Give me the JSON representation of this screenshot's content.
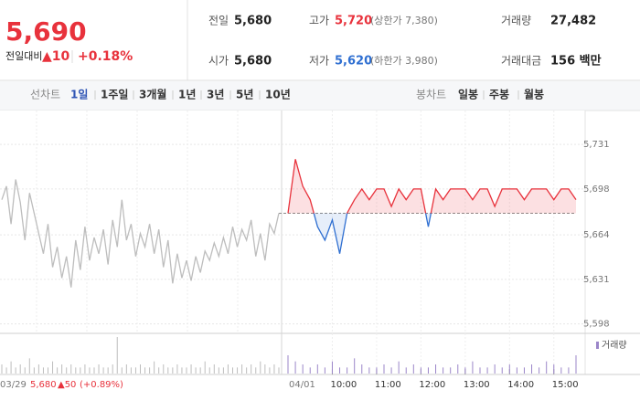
{
  "header": {
    "price": "5,690",
    "change_label": "전일대비",
    "change": "▲10",
    "rate": "+0.18%",
    "stats": [
      [
        {
          "label": "전일",
          "value": "5,680"
        },
        {
          "label": "고가",
          "value": "5,720",
          "note": "(상한가 7,380)"
        },
        {
          "label": "거래량",
          "value": "27,482"
        }
      ],
      [
        {
          "label": "시가",
          "value": "5,680"
        },
        {
          "label": "저가",
          "value": "5,620",
          "note": "(하한가 3,980)"
        },
        {
          "label": "거래대금",
          "value": "156 백만"
        }
      ]
    ]
  },
  "tabs": {
    "line_label": "선차트",
    "line_tabs": [
      "1일",
      "1주일",
      "3개월",
      "1년",
      "3년",
      "5년",
      "10년"
    ],
    "candle_label": "봉차트",
    "candle_tabs": [
      "일봉",
      "주봉",
      "월봉"
    ]
  },
  "footer": {
    "prev_close": "5,680",
    "prev_change": "▲50",
    "prev_rate": "(+0.89%)"
  },
  "chart_data": {
    "type": "line",
    "base": 5680,
    "up_color": "#e8323c",
    "down_color": "#2f6fd1",
    "prev_color": "#bdbdbd",
    "ylim": [
      5593,
      5750
    ],
    "yticks": [
      {
        "value": 5731,
        "label": "5,731"
      },
      {
        "value": 5698,
        "label": "5,698"
      },
      {
        "value": 5664,
        "label": "5,664"
      },
      {
        "value": 5631,
        "label": "5,631"
      },
      {
        "value": 5598,
        "label": "5,598"
      }
    ],
    "xlim": [
      0,
      390
    ],
    "xticks": [
      {
        "value": 60,
        "label": "10:00"
      },
      {
        "value": 120,
        "label": "11:00"
      },
      {
        "value": 180,
        "label": "12:00"
      },
      {
        "value": 240,
        "label": "13:00"
      },
      {
        "value": 300,
        "label": "14:00"
      },
      {
        "value": 360,
        "label": "15:00"
      }
    ],
    "volume_label": "거래량",
    "volume_color": "#9b86c9",
    "series": [
      {
        "name": "03/29",
        "values": [
          5690,
          5700,
          5672,
          5705,
          5688,
          5660,
          5695,
          5680,
          5665,
          5650,
          5672,
          5640,
          5655,
          5632,
          5648,
          5625,
          5660,
          5638,
          5670,
          5645,
          5662,
          5650,
          5668,
          5642,
          5675,
          5655,
          5690,
          5660,
          5672,
          5648,
          5665,
          5655,
          5672,
          5650,
          5668,
          5640,
          5660,
          5628,
          5650,
          5632,
          5645,
          5630,
          5648,
          5636,
          5652,
          5645,
          5658,
          5648,
          5662,
          5650,
          5670,
          5655,
          5668,
          5660,
          5675,
          5648,
          5665,
          5645,
          5672,
          5665,
          5680
        ],
        "volumes": [
          3,
          2,
          4,
          2,
          3,
          2,
          5,
          2,
          3,
          2,
          2,
          4,
          2,
          3,
          2,
          3,
          2,
          2,
          3,
          2,
          2,
          3,
          2,
          2,
          3,
          12,
          2,
          3,
          2,
          2,
          3,
          2,
          2,
          4,
          2,
          3,
          2,
          2,
          3,
          2,
          2,
          3,
          2,
          2,
          4,
          2,
          3,
          2,
          2,
          3,
          2,
          2,
          3,
          2,
          3,
          2,
          4,
          3,
          2,
          3,
          2
        ]
      },
      {
        "name": "04/01",
        "x": [
          0,
          10,
          20,
          30,
          40,
          50,
          60,
          70,
          80,
          90,
          100,
          110,
          120,
          130,
          140,
          150,
          160,
          170,
          180,
          190,
          200,
          210,
          220,
          230,
          240,
          250,
          260,
          270,
          280,
          290,
          300,
          310,
          320,
          330,
          340,
          350,
          360,
          370,
          380,
          390
        ],
        "values": [
          5680,
          5720,
          5700,
          5690,
          5670,
          5660,
          5675,
          5650,
          5680,
          5690,
          5698,
          5690,
          5698,
          5698,
          5685,
          5698,
          5690,
          5698,
          5698,
          5670,
          5698,
          5690,
          5698,
          5698,
          5698,
          5690,
          5698,
          5698,
          5685,
          5698,
          5698,
          5698,
          5690,
          5698,
          5698,
          5698,
          5690,
          5698,
          5698,
          5690
        ],
        "volumes": [
          6,
          4,
          3,
          2,
          3,
          2,
          4,
          2,
          2,
          5,
          3,
          2,
          2,
          3,
          2,
          4,
          2,
          3,
          2,
          2,
          3,
          2,
          2,
          3,
          2,
          4,
          2,
          2,
          3,
          2,
          3,
          2,
          2,
          3,
          2,
          4,
          3,
          2,
          2,
          6
        ]
      }
    ]
  }
}
